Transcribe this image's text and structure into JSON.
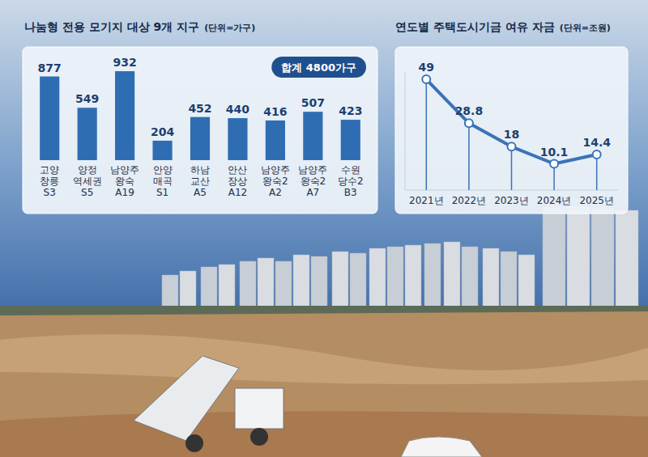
{
  "chart_data": [
    {
      "type": "bar",
      "title": "나눔형 전용 모기지 대상 9개 지구",
      "subtitle": "(단위=가구)",
      "annotation": "합계 4800가구",
      "categories": [
        "고양 창릉 S3",
        "양정 역세권 S5",
        "남양주 왕숙 A19",
        "안양 매곡 S1",
        "하남 교산 A5",
        "안산 장상 A12",
        "남양주 왕숙2 A2",
        "남양주 왕숙2 A7",
        "수원 당수2 B3"
      ],
      "values": [
        877,
        549,
        932,
        204,
        452,
        440,
        416,
        507,
        423
      ],
      "color": "#2f6db3",
      "ylim": [
        0,
        1000
      ],
      "grid": false,
      "data_labels": true,
      "tick_labels": "x"
    },
    {
      "type": "line",
      "title": "연도별 주택도시기금 여유 자금",
      "subtitle": "(단위=조원)",
      "categories": [
        "2021년",
        "2022년",
        "2023년",
        "2024년",
        "2025년"
      ],
      "values": [
        49,
        28.8,
        18,
        10.1,
        14.4
      ],
      "color": "#3a73b8",
      "marker": "circle",
      "ylim": [
        -2,
        52
      ],
      "grid": false,
      "data_labels": true,
      "tick_labels": "x"
    }
  ]
}
